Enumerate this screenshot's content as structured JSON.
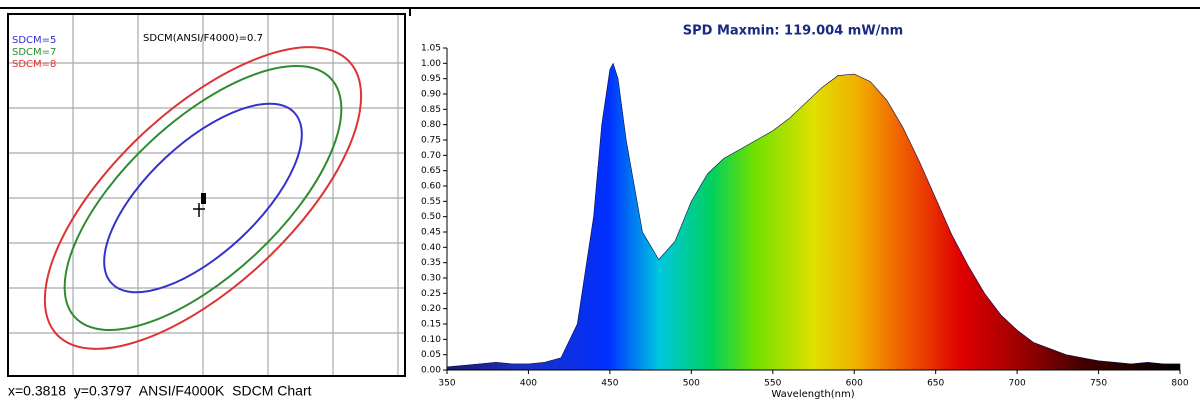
{
  "chart_data": [
    {
      "type": "sdcm",
      "title": "SDCM(ANSI/F4000)=0.7",
      "caption": "x=0.3818  y=0.3797  ANSI/F4000K  SDCM Chart",
      "series": [
        {
          "name": "SDCM=5",
          "color": "#3333cc",
          "value": 5
        },
        {
          "name": "SDCM=7",
          "color": "#2e8b2e",
          "value": 7
        },
        {
          "name": "SDCM=8",
          "color": "#dd3333",
          "value": 8
        }
      ]
    },
    {
      "type": "area",
      "title": "SPD Maxmin: 119.004 mW/nm",
      "xlabel": "Wavelength(nm)",
      "x": [
        350,
        360,
        370,
        380,
        390,
        400,
        410,
        420,
        430,
        440,
        445,
        450,
        452,
        455,
        460,
        470,
        480,
        490,
        500,
        510,
        520,
        530,
        540,
        550,
        560,
        570,
        580,
        590,
        600,
        610,
        620,
        630,
        640,
        650,
        660,
        670,
        680,
        690,
        700,
        710,
        720,
        730,
        740,
        750,
        760,
        770,
        780,
        790,
        800
      ],
      "values": [
        0.01,
        0.015,
        0.02,
        0.025,
        0.02,
        0.02,
        0.025,
        0.04,
        0.15,
        0.5,
        0.8,
        0.98,
        1.0,
        0.95,
        0.75,
        0.45,
        0.36,
        0.42,
        0.55,
        0.64,
        0.69,
        0.72,
        0.75,
        0.78,
        0.82,
        0.87,
        0.92,
        0.96,
        0.965,
        0.94,
        0.88,
        0.79,
        0.68,
        0.56,
        0.44,
        0.34,
        0.25,
        0.18,
        0.13,
        0.09,
        0.07,
        0.05,
        0.04,
        0.03,
        0.025,
        0.02,
        0.025,
        0.02,
        0.02
      ],
      "xlim": [
        350,
        800
      ],
      "xticks": [
        350,
        400,
        450,
        500,
        550,
        600,
        650,
        700,
        750,
        800
      ],
      "ylim": [
        0,
        1.05
      ],
      "yticks": [
        {
          "value": 0,
          "label": "0.00"
        },
        {
          "value": 0.05,
          "label": "0.05"
        },
        {
          "value": 0.1,
          "label": "0.10"
        },
        {
          "value": 0.15,
          "label": "0.15"
        },
        {
          "value": 0.2,
          "label": "0.20"
        },
        {
          "value": 0.25,
          "label": "0.25"
        },
        {
          "value": 0.3,
          "label": "0.30"
        },
        {
          "value": 0.35,
          "label": "0.35"
        },
        {
          "value": 0.4,
          "label": "0.40"
        },
        {
          "value": 0.45,
          "label": "0.45"
        },
        {
          "value": 0.5,
          "label": "0.50"
        },
        {
          "value": 0.55,
          "label": "0.55"
        },
        {
          "value": 0.6,
          "label": "0.60"
        },
        {
          "value": 0.65,
          "label": "0.65"
        },
        {
          "value": 0.7,
          "label": "0.70"
        },
        {
          "value": 0.75,
          "label": "0.75"
        },
        {
          "value": 0.8,
          "label": "0.80"
        },
        {
          "value": 0.85,
          "label": "0.85"
        },
        {
          "value": 0.9,
          "label": "0.90"
        },
        {
          "value": 0.95,
          "label": "0.95"
        },
        {
          "value": 1,
          "label": "1.00"
        },
        {
          "value": 1.05,
          "label": "1.05"
        }
      ]
    }
  ]
}
